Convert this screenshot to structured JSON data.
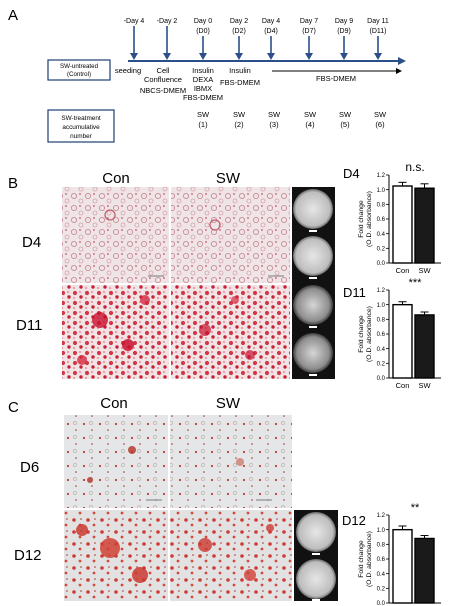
{
  "panel_a": {
    "letter": "A",
    "timeline_days": [
      {
        "top": "-Day 4",
        "bottom": "",
        "arrow": true
      },
      {
        "top": "-Day 2",
        "bottom": "",
        "arrow": true
      },
      {
        "top": "Day 0",
        "bottom": "(D0)",
        "arrow": true
      },
      {
        "top": "Day 2",
        "bottom": "(D2)",
        "arrow": true
      },
      {
        "top": "Day 4",
        "bottom": "(D4)",
        "arrow": true
      },
      {
        "top": "Day 7",
        "bottom": "(D7)",
        "arrow": true
      },
      {
        "top": "Day 9",
        "bottom": "(D9)",
        "arrow": true
      },
      {
        "top": "Day 11",
        "bottom": "(D11)",
        "arrow": true
      }
    ],
    "untreated_box": [
      "SW-untreated",
      "(Control)"
    ],
    "steps": {
      "seeding": "seeding",
      "cell_confluence": [
        "Cell",
        "Confluence"
      ],
      "nbcs": "NBCS-DMEM",
      "day0_media": [
        "Insulin",
        "DEXA",
        "IBMX",
        "FBS-DMEM"
      ],
      "day2_media": [
        "Insulin",
        "FBS-DMEM"
      ],
      "long_media": "FBS-DMEM"
    },
    "treatment_box": [
      "SW-treatment",
      "accumulative",
      "number"
    ],
    "sw_labels": [
      {
        "top": "SW",
        "bottom": "(1)"
      },
      {
        "top": "SW",
        "bottom": "(2)"
      },
      {
        "top": "SW",
        "bottom": "(3)"
      },
      {
        "top": "SW",
        "bottom": "(4)"
      },
      {
        "top": "SW",
        "bottom": "(5)"
      },
      {
        "top": "SW",
        "bottom": "(6)"
      }
    ]
  },
  "panel_b": {
    "letter": "B",
    "col_labels": [
      "Con",
      "SW"
    ],
    "row_labels": [
      "D4",
      "D11"
    ]
  },
  "panel_c": {
    "letter": "C",
    "col_labels": [
      "Con",
      "SW"
    ],
    "row_labels": [
      "D6",
      "D12"
    ]
  },
  "colors": {
    "oil_red": "#c8102e",
    "stain_light": "#e7b3bd",
    "background_b": "#efe7e7",
    "background_c": "#e3e6e7",
    "timeline_blue": "#2a4f8a"
  },
  "chart_data": [
    {
      "type": "bar",
      "title": "D4",
      "categories": [
        "Con",
        "SW"
      ],
      "values": [
        1.05,
        1.02
      ],
      "errors": [
        0.05,
        0.06
      ],
      "significance": "n.s.",
      "ylabel": [
        "Fold change",
        "(O.D. absorbance)"
      ],
      "ylim": [
        0,
        1.2
      ],
      "yticks": [
        "0.0",
        "0.2",
        "0.4",
        "0.6",
        "0.8",
        "1.0",
        "1.2"
      ],
      "bar_colors": [
        "#ffffff",
        "#1a1a1a"
      ]
    },
    {
      "type": "bar",
      "title": "D11",
      "categories": [
        "Con",
        "SW"
      ],
      "values": [
        1.0,
        0.86
      ],
      "errors": [
        0.04,
        0.04
      ],
      "significance": "***",
      "ylabel": [
        "Fold change",
        "(O.D. absorbance)"
      ],
      "ylim": [
        0,
        1.2
      ],
      "yticks": [
        "0.0",
        "0.2",
        "0.4",
        "0.6",
        "0.8",
        "1.0",
        "1.2"
      ],
      "bar_colors": [
        "#ffffff",
        "#1a1a1a"
      ]
    },
    {
      "type": "bar",
      "title": "D12",
      "categories": [
        "Con",
        "SW"
      ],
      "values": [
        1.0,
        0.88
      ],
      "errors": [
        0.05,
        0.04
      ],
      "significance": "**",
      "ylabel": [
        "Fold change",
        "(O.D. absorbance)"
      ],
      "ylim": [
        0,
        1.2
      ],
      "yticks": [
        "0.0",
        "0.2",
        "0.4",
        "0.6",
        "0.8",
        "1.0",
        "1.2"
      ],
      "bar_colors": [
        "#ffffff",
        "#1a1a1a"
      ]
    }
  ]
}
